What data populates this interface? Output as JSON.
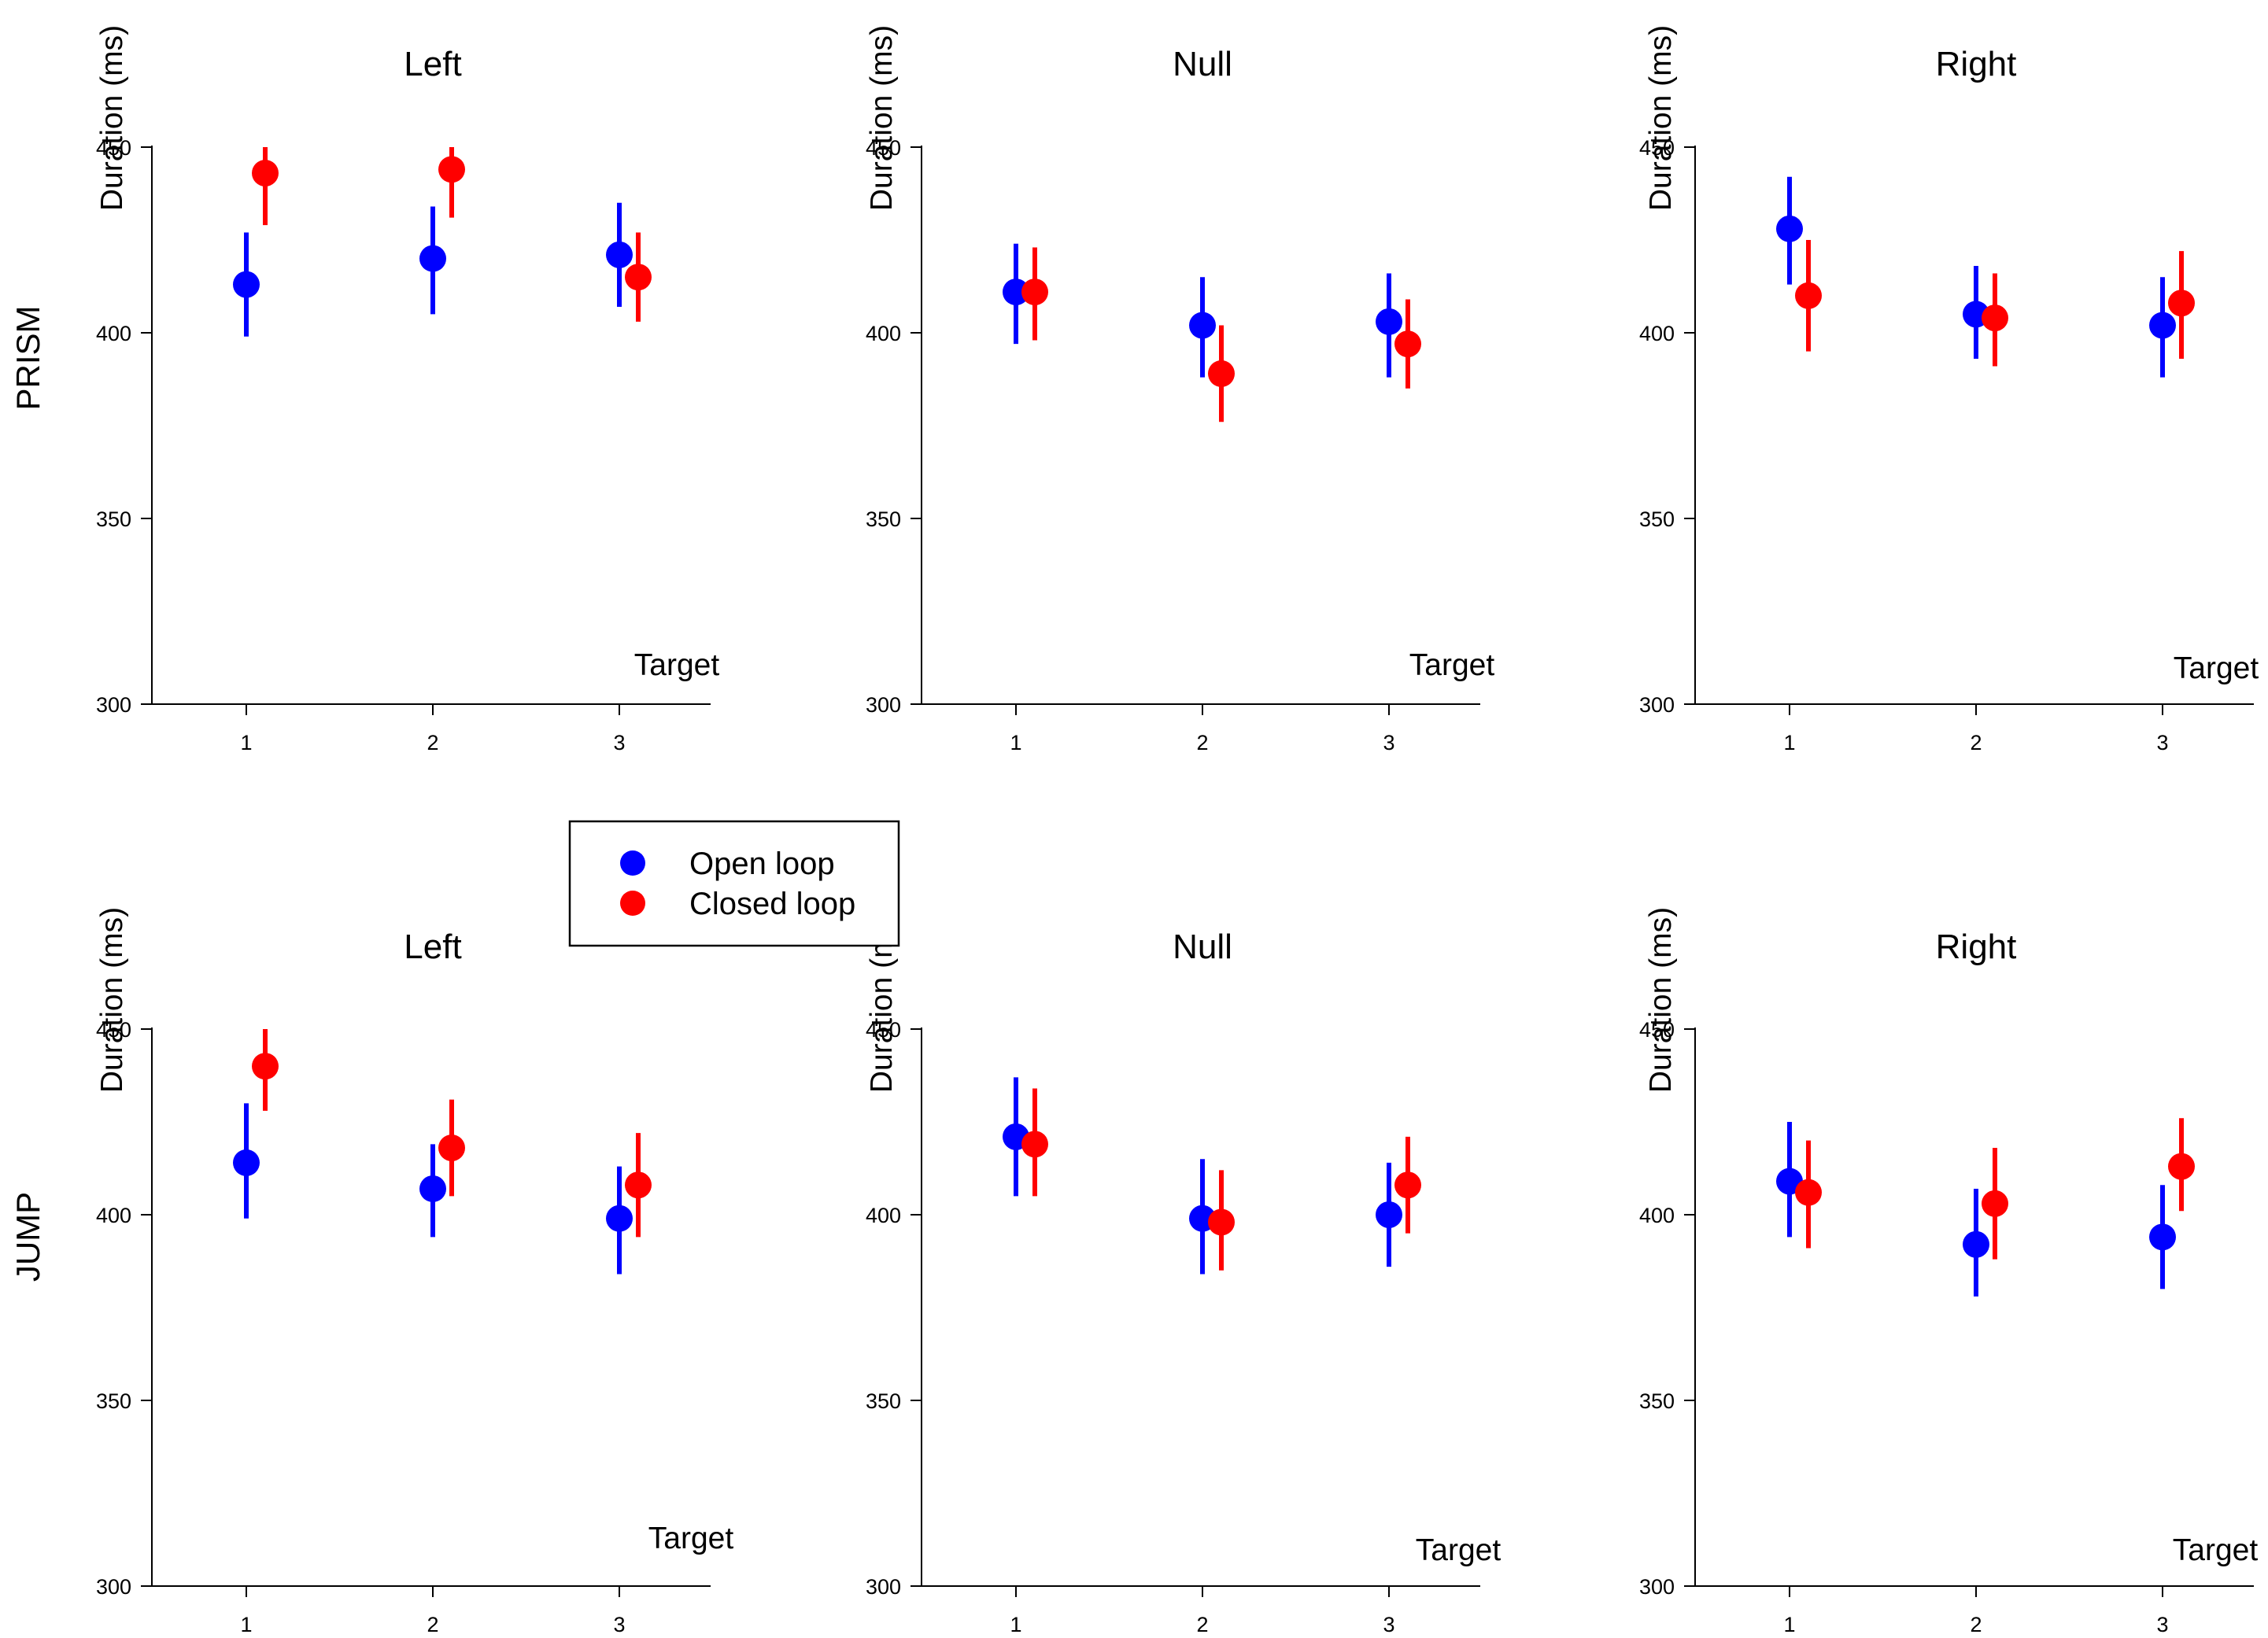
{
  "colors": {
    "open": "#0000ff",
    "closed": "#ff0000",
    "axis": "#000000"
  },
  "legend": {
    "open_label": "Open loop",
    "closed_label": "Closed loop"
  },
  "rows": [
    {
      "label": "PRISM"
    },
    {
      "label": "JUMP"
    }
  ],
  "chart_data": [
    {
      "type": "scatter",
      "row": "PRISM",
      "title": "Left",
      "xlabel": "Target",
      "ylabel": "Duration (ms)",
      "categories": [
        "1",
        "2",
        "3"
      ],
      "ylim": [
        300,
        450
      ],
      "yticks": [
        "300",
        "350",
        "400",
        "450"
      ],
      "series": [
        {
          "name": "Open loop",
          "values": [
            413,
            420,
            421
          ],
          "err_low": [
            399,
            405,
            407
          ],
          "err_high": [
            427,
            434,
            435
          ]
        },
        {
          "name": "Closed loop",
          "values": [
            443,
            444,
            415
          ],
          "err_low": [
            429,
            431,
            403
          ],
          "err_high": [
            450,
            450,
            427
          ]
        }
      ]
    },
    {
      "type": "scatter",
      "row": "PRISM",
      "title": "Null",
      "xlabel": "Target",
      "ylabel": "Duration (ms)",
      "categories": [
        "1",
        "2",
        "3"
      ],
      "ylim": [
        300,
        450
      ],
      "yticks": [
        "300",
        "350",
        "400",
        "450"
      ],
      "series": [
        {
          "name": "Open loop",
          "values": [
            411,
            402,
            403
          ],
          "err_low": [
            397,
            388,
            388
          ],
          "err_high": [
            424,
            415,
            416
          ]
        },
        {
          "name": "Closed loop",
          "values": [
            411,
            389,
            397
          ],
          "err_low": [
            398,
            376,
            385
          ],
          "err_high": [
            423,
            402,
            409
          ]
        }
      ]
    },
    {
      "type": "scatter",
      "row": "PRISM",
      "title": "Right",
      "xlabel": "Target",
      "ylabel": "Duration (ms)",
      "categories": [
        "1",
        "2",
        "3"
      ],
      "ylim": [
        300,
        450
      ],
      "yticks": [
        "300",
        "350",
        "400",
        "450"
      ],
      "series": [
        {
          "name": "Open loop",
          "values": [
            428,
            405,
            402
          ],
          "err_low": [
            413,
            393,
            388
          ],
          "err_high": [
            442,
            418,
            415
          ]
        },
        {
          "name": "Closed loop",
          "values": [
            410,
            404,
            408
          ],
          "err_low": [
            395,
            391,
            393
          ],
          "err_high": [
            425,
            416,
            422
          ]
        }
      ]
    },
    {
      "type": "scatter",
      "row": "JUMP",
      "title": "Left",
      "xlabel": "Target",
      "ylabel": "Duration (ms)",
      "categories": [
        "1",
        "2",
        "3"
      ],
      "ylim": [
        300,
        450
      ],
      "yticks": [
        "300",
        "350",
        "400",
        "450"
      ],
      "series": [
        {
          "name": "Open loop",
          "values": [
            414,
            407,
            399
          ],
          "err_low": [
            399,
            394,
            384
          ],
          "err_high": [
            430,
            419,
            413
          ]
        },
        {
          "name": "Closed loop",
          "values": [
            440,
            418,
            408
          ],
          "err_low": [
            428,
            405,
            394
          ],
          "err_high": [
            450,
            431,
            422
          ]
        }
      ]
    },
    {
      "type": "scatter",
      "row": "JUMP",
      "title": "Null",
      "xlabel": "Target",
      "ylabel": "Duration (ms)",
      "categories": [
        "1",
        "2",
        "3"
      ],
      "ylim": [
        300,
        450
      ],
      "yticks": [
        "300",
        "350",
        "400",
        "450"
      ],
      "series": [
        {
          "name": "Open loop",
          "values": [
            421,
            399,
            400
          ],
          "err_low": [
            405,
            384,
            386
          ],
          "err_high": [
            437,
            415,
            414
          ]
        },
        {
          "name": "Closed loop",
          "values": [
            419,
            398,
            408
          ],
          "err_low": [
            405,
            385,
            395
          ],
          "err_high": [
            434,
            412,
            421
          ]
        }
      ]
    },
    {
      "type": "scatter",
      "row": "JUMP",
      "title": "Right",
      "xlabel": "Target",
      "ylabel": "Duration (ms)",
      "categories": [
        "1",
        "2",
        "3"
      ],
      "ylim": [
        300,
        450
      ],
      "yticks": [
        "300",
        "350",
        "400",
        "450"
      ],
      "series": [
        {
          "name": "Open loop",
          "values": [
            409,
            392,
            394
          ],
          "err_low": [
            394,
            378,
            380
          ],
          "err_high": [
            425,
            407,
            408
          ]
        },
        {
          "name": "Closed loop",
          "values": [
            406,
            403,
            413
          ],
          "err_low": [
            391,
            388,
            401
          ],
          "err_high": [
            420,
            418,
            426
          ]
        }
      ]
    }
  ]
}
